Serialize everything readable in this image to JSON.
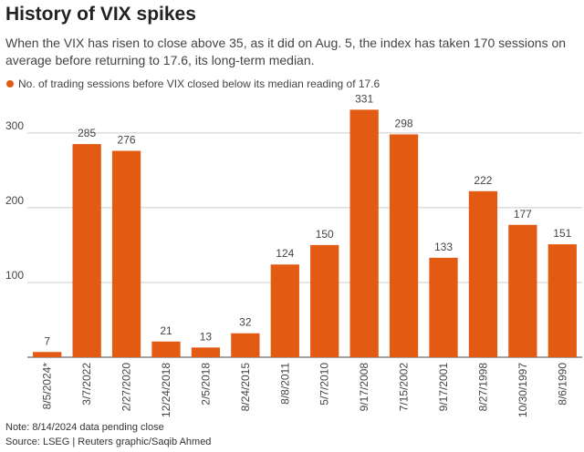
{
  "chart_data": {
    "type": "bar",
    "title": "History of VIX spikes",
    "subtitle": "When the VIX has risen to close above 35, as it did on Aug. 5, the index has taken 170 sessions on average before returning to 17.6, its long-term median.",
    "series": [
      {
        "name": "No. of trading sessions before VIX closed below its median reading of 17.6",
        "color": "#e35a12",
        "values": [
          7,
          285,
          276,
          21,
          13,
          32,
          124,
          150,
          331,
          298,
          133,
          222,
          177,
          151
        ]
      }
    ],
    "categories": [
      "8/5/2024*",
      "3/7/2022",
      "2/27/2020",
      "12/24/2018",
      "2/5/2018",
      "8/24/2015",
      "8/8/2011",
      "5/7/2010",
      "9/17/2008",
      "7/15/2002",
      "9/17/2001",
      "8/27/1998",
      "10/30/1997",
      "8/6/1990"
    ],
    "ylim": [
      0,
      340
    ],
    "yticks": [
      100,
      200,
      300
    ],
    "grid": true,
    "note": "Note: 8/14/2024 data pending close",
    "source": "Source: LSEG | Reuters graphic/Saqib Ahmed"
  }
}
